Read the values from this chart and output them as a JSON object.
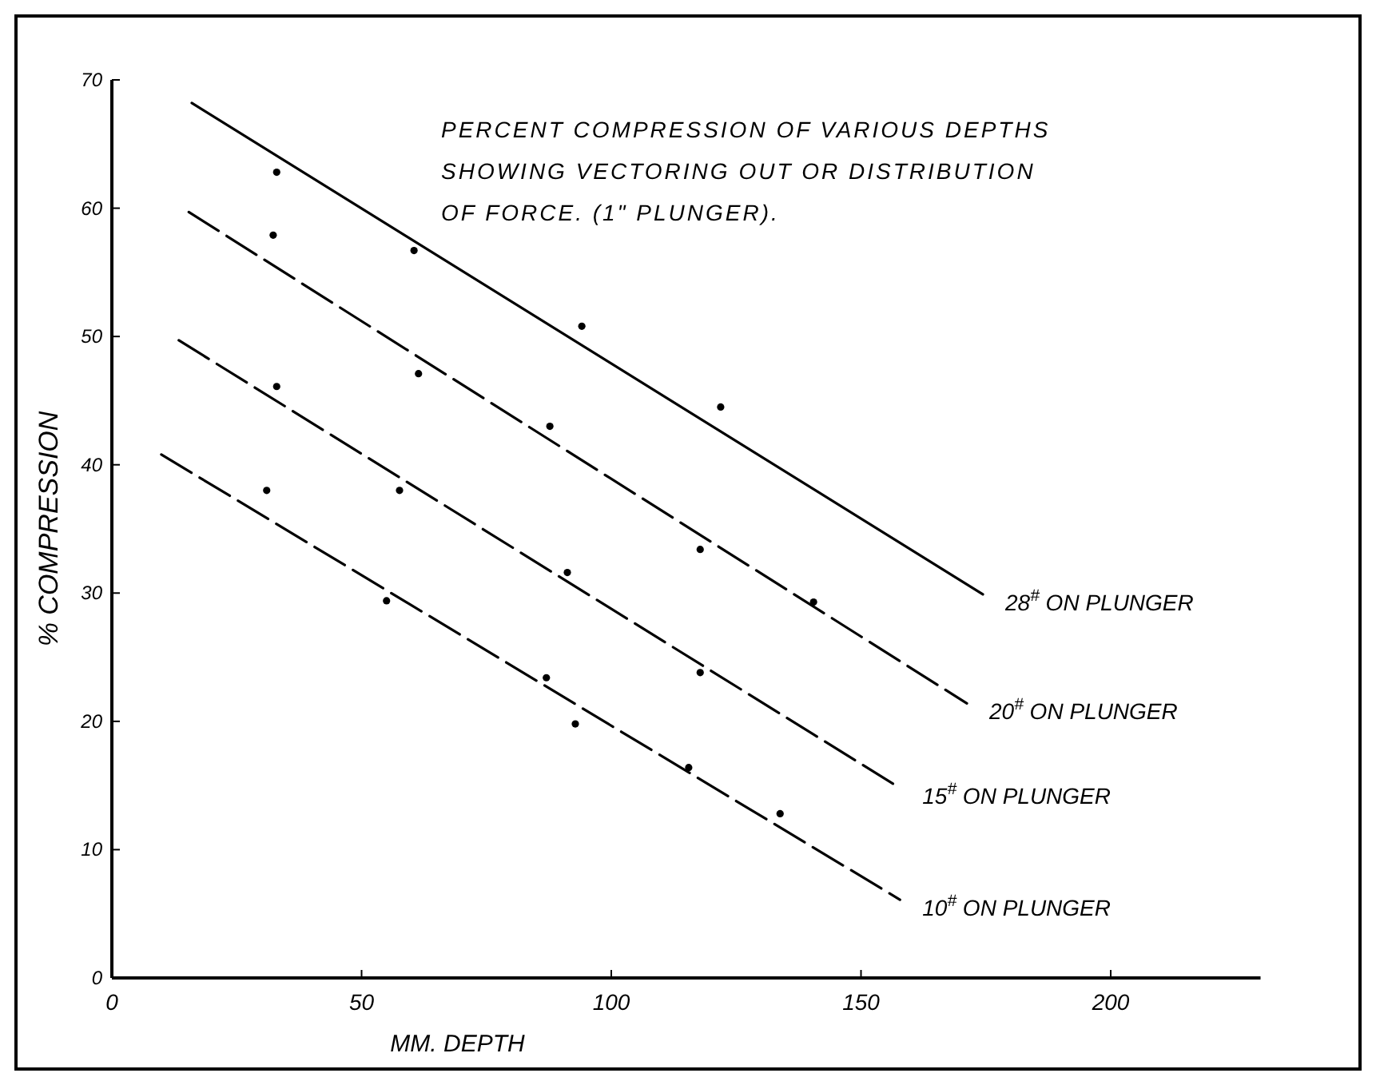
{
  "chart_data": {
    "type": "scatter",
    "title": "PERCENT COMPRESSION OF VARIOUS DEPTHS SHOWING VECTORING OUT OR DISTRIBUTION OF FORCE. (1\" PLUNGER).",
    "xlabel": "MM. DEPTH",
    "ylabel": "% COMPRESSION",
    "xlim": [
      0,
      230
    ],
    "ylim": [
      0,
      70
    ],
    "xticks": [
      0,
      50,
      100,
      150,
      200
    ],
    "yticks": [
      0,
      10,
      20,
      30,
      40,
      50,
      60,
      70
    ],
    "grid": false,
    "series": [
      {
        "type": "line",
        "name": "28$^{#}$ ON PLUNGER",
        "color": "#000000",
        "line_style": "solid",
        "x": [
          16,
          174.4
        ],
        "values": [
          68.2,
          29.9
        ]
      },
      {
        "type": "line",
        "name": "20$^{#}$ ON PLUNGER",
        "color": "#000000",
        "line_style": "dashed",
        "x": [
          15.4,
          171.2
        ],
        "values": [
          59.7,
          21.4
        ]
      },
      {
        "type": "line",
        "name": "15$^{#}$ ON PLUNGER",
        "color": "#000000",
        "line_style": "dashed",
        "x": [
          13.4,
          157.8
        ],
        "values": [
          49.7,
          14.8
        ]
      },
      {
        "type": "line",
        "name": "10$^{#}$ ON PLUNGER",
        "color": "#000000",
        "line_style": "dashed",
        "x": [
          9.9,
          157.8
        ],
        "values": [
          40.8,
          6.1
        ]
      },
      {
        "color": "#000000",
        "marker": "circle",
        "x": [
          33,
          60.5,
          94.1,
          121.9
        ],
        "values": [
          62.8,
          56.7,
          50.8,
          44.5
        ]
      },
      {
        "color": "#000000",
        "marker": "circle",
        "x": [
          32.3,
          61.4,
          87.7,
          117.8,
          140.5
        ],
        "values": [
          57.9,
          47.1,
          43,
          33.4,
          29.3
        ]
      },
      {
        "color": "#000000",
        "marker": "circle",
        "x": [
          33,
          57.6,
          91.2,
          117.8
        ],
        "values": [
          46.1,
          38,
          31.6,
          23.8
        ]
      },
      {
        "color": "#000000",
        "marker": "circle",
        "x": [
          31,
          55,
          87,
          92.8,
          115.5,
          133.8
        ],
        "values": [
          38,
          29.4,
          23.4,
          19.8,
          16.4,
          12.8
        ]
      }
    ]
  }
}
